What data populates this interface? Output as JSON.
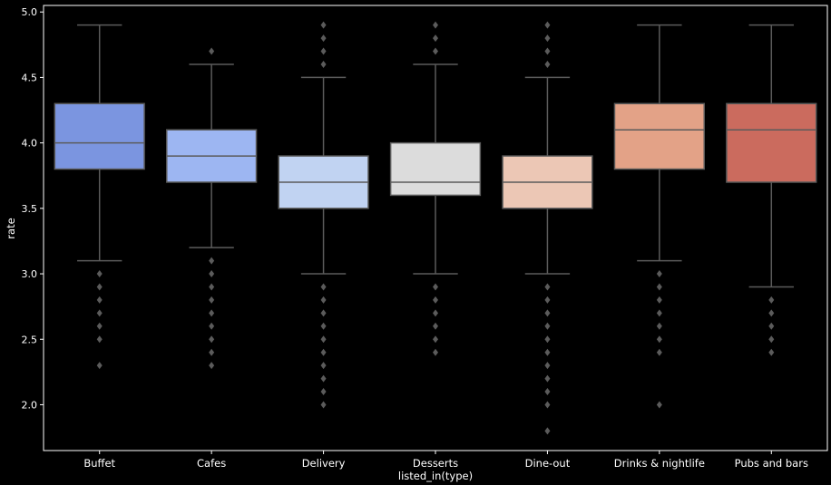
{
  "chart_data": {
    "type": "box",
    "xlabel": "listed_in(type)",
    "ylabel": "rate",
    "ylim": [
      1.65,
      5.05
    ],
    "yticks": [
      "2.0",
      "2.5",
      "3.0",
      "3.5",
      "4.0",
      "4.5",
      "5.0"
    ],
    "grid": false,
    "categories": [
      {
        "name": "Buffet",
        "color": "#7b95e0",
        "q1": 3.8,
        "median": 4.0,
        "q3": 4.3,
        "whisker_low": 3.1,
        "whisker_high": 4.9,
        "outliers": [
          3.0,
          2.9,
          2.8,
          2.7,
          2.6,
          2.5,
          2.3
        ]
      },
      {
        "name": "Cafes",
        "color": "#9db6f2",
        "q1": 3.7,
        "median": 3.9,
        "q3": 4.1,
        "whisker_low": 3.2,
        "whisker_high": 4.6,
        "outliers": [
          4.7,
          3.1,
          3.0,
          2.9,
          2.8,
          2.7,
          2.6,
          2.5,
          2.4,
          2.3
        ]
      },
      {
        "name": "Delivery",
        "color": "#c1d3f2",
        "q1": 3.5,
        "median": 3.7,
        "q3": 3.9,
        "whisker_low": 3.0,
        "whisker_high": 4.5,
        "outliers": [
          4.9,
          4.8,
          4.7,
          4.6,
          2.9,
          2.8,
          2.7,
          2.6,
          2.5,
          2.4,
          2.3,
          2.2,
          2.1,
          2.0
        ]
      },
      {
        "name": "Desserts",
        "color": "#dcdcdc",
        "q1": 3.6,
        "median": 3.7,
        "q3": 4.0,
        "whisker_low": 3.0,
        "whisker_high": 4.6,
        "outliers": [
          4.9,
          4.8,
          4.7,
          2.9,
          2.8,
          2.7,
          2.6,
          2.5,
          2.4
        ]
      },
      {
        "name": "Dine-out",
        "color": "#ecc7b5",
        "q1": 3.5,
        "median": 3.7,
        "q3": 3.9,
        "whisker_low": 3.0,
        "whisker_high": 4.5,
        "outliers": [
          4.9,
          4.8,
          4.7,
          4.6,
          2.9,
          2.8,
          2.7,
          2.6,
          2.5,
          2.4,
          2.3,
          2.2,
          2.1,
          2.0,
          1.8
        ]
      },
      {
        "name": "Drinks & nightlife",
        "color": "#e3a287",
        "q1": 3.8,
        "median": 4.1,
        "q3": 4.3,
        "whisker_low": 3.1,
        "whisker_high": 4.9,
        "outliers": [
          3.0,
          2.9,
          2.8,
          2.7,
          2.6,
          2.5,
          2.4,
          2.0
        ]
      },
      {
        "name": "Pubs and bars",
        "color": "#cb6b5e",
        "q1": 3.7,
        "median": 4.1,
        "q3": 4.3,
        "whisker_low": 2.9,
        "whisker_high": 4.9,
        "outliers": [
          2.8,
          2.7,
          2.6,
          2.5,
          2.4
        ]
      }
    ]
  }
}
